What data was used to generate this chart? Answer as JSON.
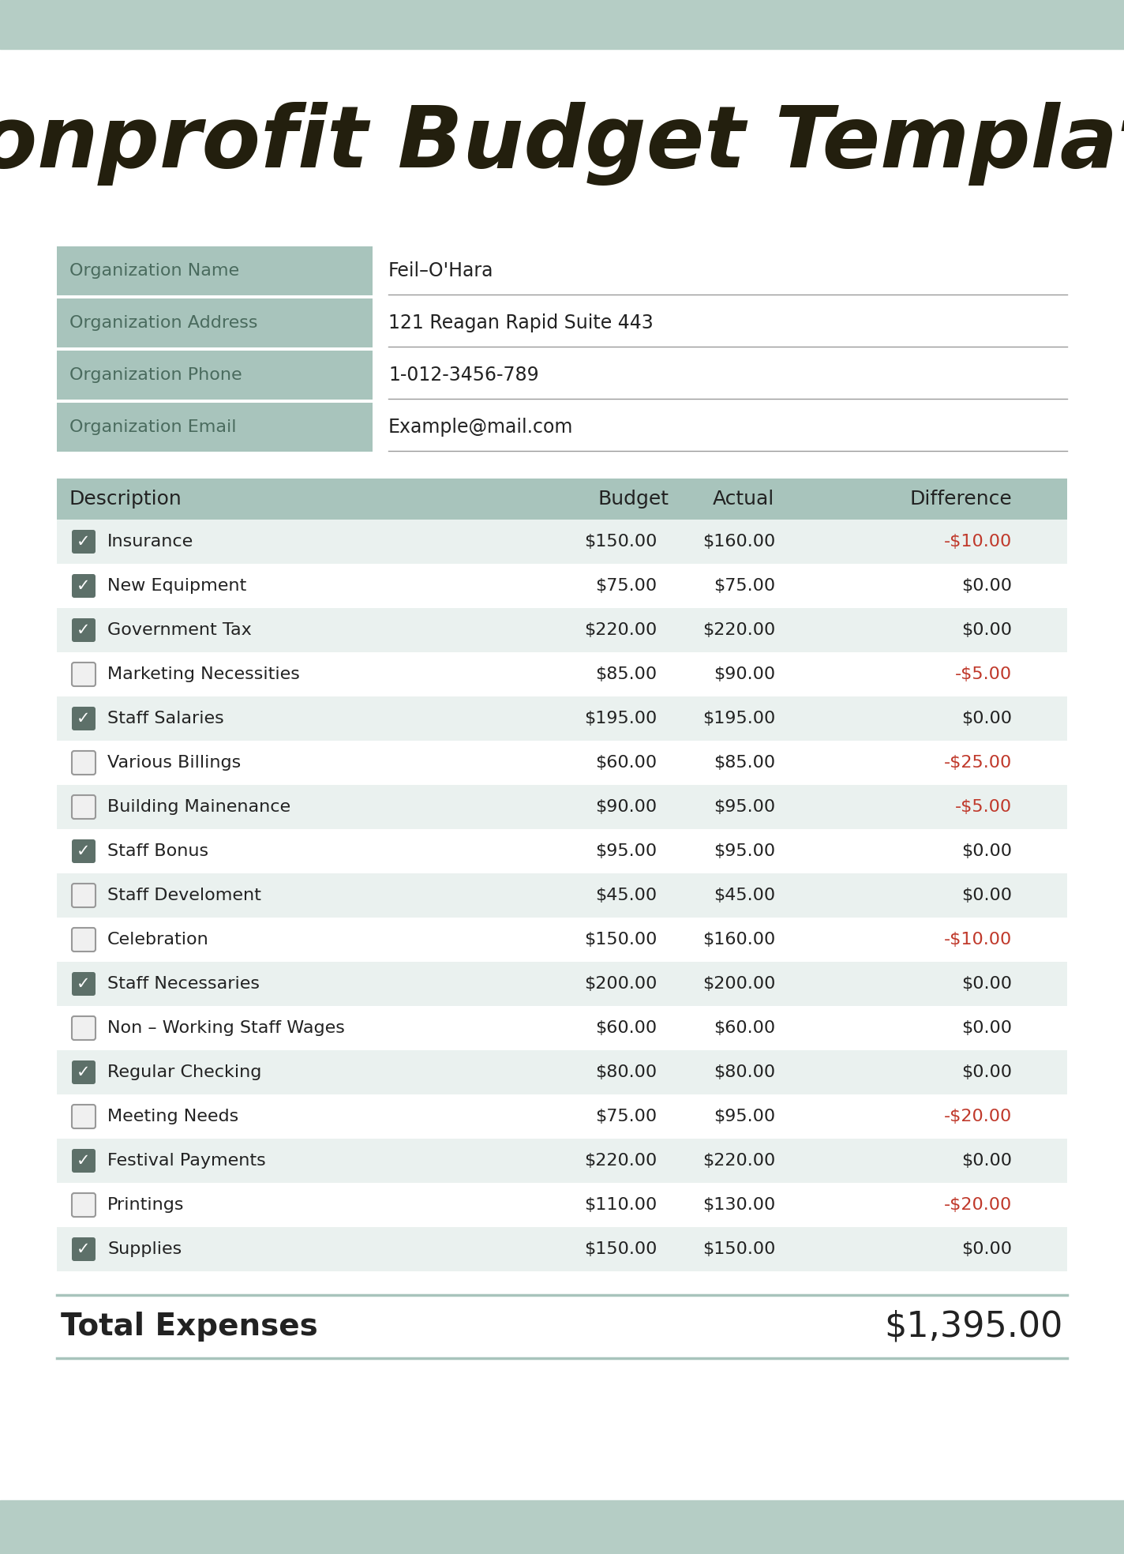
{
  "title": "Nonprofit Budget Template",
  "bg_color": "#b5cdc5",
  "white_bg": "#ffffff",
  "header_color": "#a8c4bc",
  "row_alt_color": "#eaf1ef",
  "row_white": "#ffffff",
  "org_fields": [
    [
      "Organization Name",
      "Feil–O'Hara"
    ],
    [
      "Organization Address",
      "121 Reagan Rapid Suite 443"
    ],
    [
      "Organization Phone",
      "1-012-3456-789"
    ],
    [
      "Organization Email",
      "Example@mail.com"
    ]
  ],
  "table_headers": [
    "Description",
    "Budget",
    "Actual",
    "Difference"
  ],
  "rows": [
    {
      "checked": true,
      "description": "Insurance",
      "budget": "$150.00",
      "actual": "$160.00",
      "difference": "-$10.00",
      "diff_neg": true
    },
    {
      "checked": true,
      "description": "New Equipment",
      "budget": "$75.00",
      "actual": "$75.00",
      "difference": "$0.00",
      "diff_neg": false
    },
    {
      "checked": true,
      "description": "Government Tax",
      "budget": "$220.00",
      "actual": "$220.00",
      "difference": "$0.00",
      "diff_neg": false
    },
    {
      "checked": false,
      "description": "Marketing Necessities",
      "budget": "$85.00",
      "actual": "$90.00",
      "difference": "-$5.00",
      "diff_neg": true
    },
    {
      "checked": true,
      "description": "Staff Salaries",
      "budget": "$195.00",
      "actual": "$195.00",
      "difference": "$0.00",
      "diff_neg": false
    },
    {
      "checked": false,
      "description": "Various Billings",
      "budget": "$60.00",
      "actual": "$85.00",
      "difference": "-$25.00",
      "diff_neg": true
    },
    {
      "checked": false,
      "description": "Building Mainenance",
      "budget": "$90.00",
      "actual": "$95.00",
      "difference": "-$5.00",
      "diff_neg": true
    },
    {
      "checked": true,
      "description": "Staff Bonus",
      "budget": "$95.00",
      "actual": "$95.00",
      "difference": "$0.00",
      "diff_neg": false
    },
    {
      "checked": false,
      "description": "Staff Develoment",
      "budget": "$45.00",
      "actual": "$45.00",
      "difference": "$0.00",
      "diff_neg": false
    },
    {
      "checked": false,
      "description": "Celebration",
      "budget": "$150.00",
      "actual": "$160.00",
      "difference": "-$10.00",
      "diff_neg": true
    },
    {
      "checked": true,
      "description": "Staff Necessaries",
      "budget": "$200.00",
      "actual": "$200.00",
      "difference": "$0.00",
      "diff_neg": false
    },
    {
      "checked": false,
      "description": "Non – Working Staff Wages",
      "budget": "$60.00",
      "actual": "$60.00",
      "difference": "$0.00",
      "diff_neg": false
    },
    {
      "checked": true,
      "description": "Regular Checking",
      "budget": "$80.00",
      "actual": "$80.00",
      "difference": "$0.00",
      "diff_neg": false
    },
    {
      "checked": false,
      "description": "Meeting Needs",
      "budget": "$75.00",
      "actual": "$95.00",
      "difference": "-$20.00",
      "diff_neg": true
    },
    {
      "checked": true,
      "description": "Festival Payments",
      "budget": "$220.00",
      "actual": "$220.00",
      "difference": "$0.00",
      "diff_neg": false
    },
    {
      "checked": false,
      "description": "Printings",
      "budget": "$110.00",
      "actual": "$130.00",
      "difference": "-$20.00",
      "diff_neg": true
    },
    {
      "checked": true,
      "description": "Supplies",
      "budget": "$150.00",
      "actual": "$150.00",
      "difference": "$0.00",
      "diff_neg": false
    }
  ],
  "total_label": "Total Expenses",
  "total_value": "$1,395.00",
  "negative_color": "#c0392b",
  "text_color": "#222222",
  "label_color": "#4a6b5e",
  "dark_title_color": "#231f0e"
}
